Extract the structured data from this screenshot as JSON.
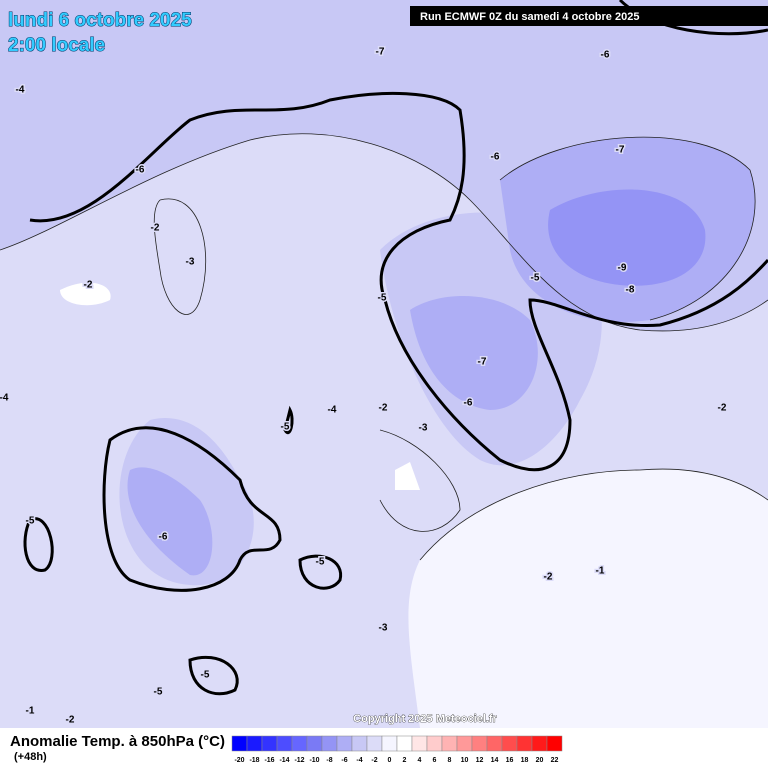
{
  "header": {
    "date": "lundi 6 octobre 2025",
    "time": "2:00 locale",
    "run": "Run ECMWF 0Z du samedi 4 octobre 2025"
  },
  "map": {
    "contour_labels": [
      "-7",
      "-6",
      "-4",
      "-6",
      "-6",
      "-7",
      "-2",
      "-3",
      "-2",
      "-5",
      "-9",
      "-8",
      "-5",
      "-7",
      "-6",
      "-2",
      "-4",
      "-5",
      "-3",
      "-2",
      "-6",
      "-5",
      "-5",
      "-2",
      "-1",
      "-3",
      "-5",
      "-5",
      "-1",
      "-2",
      "-4"
    ],
    "copyright": "Copyright 2025 Meteociel.fr"
  },
  "legend": {
    "title": "Anomalie Temp. à 850hPa (°C)",
    "lead": "(+48h)",
    "ticks": [
      -20,
      -18,
      -16,
      -14,
      -12,
      -10,
      -8,
      -6,
      -4,
      -2,
      0,
      2,
      4,
      6,
      8,
      10,
      12,
      14,
      16,
      18,
      20,
      22
    ],
    "colors": [
      "#0000ff",
      "#1a1aff",
      "#3333ff",
      "#4d4dff",
      "#6666ff",
      "#7a7af5",
      "#9494f5",
      "#aeaef5",
      "#c8c8f5",
      "#dcdcf8",
      "#f5f5ff",
      "#ffffff",
      "#ffe6e6",
      "#ffcccc",
      "#ffb3b3",
      "#ff9999",
      "#ff8080",
      "#ff6666",
      "#ff4d4d",
      "#ff3333",
      "#ff1a1a",
      "#ff0000"
    ]
  }
}
